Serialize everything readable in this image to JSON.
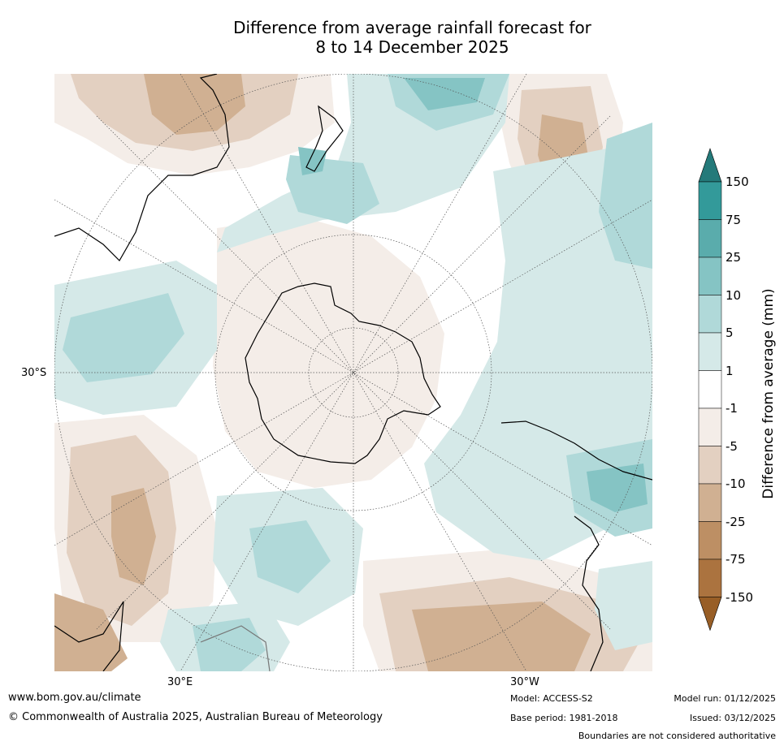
{
  "title": {
    "line1": "Difference from average rainfall forecast for",
    "line2": "8 to 14 December 2025"
  },
  "map": {
    "projection": "south-polar-stereographic",
    "lat_labels": [
      {
        "text": "30°S"
      }
    ],
    "lon_labels": [
      {
        "text": "30°E"
      },
      {
        "text": "30°W"
      }
    ]
  },
  "colorbar": {
    "title": "Difference from average (mm)",
    "ticks": [
      "150",
      "75",
      "25",
      "10",
      "5",
      "1",
      "-1",
      "-5",
      "-10",
      "-25",
      "-75",
      "-150"
    ],
    "colors": {
      "over": "#247a7a",
      "c150_75": "#339a9a",
      "c75_25": "#5aacac",
      "c25_10": "#85c4c4",
      "c10_5": "#b0d9d9",
      "c5_1": "#d5e9e8",
      "c1_m1": "#ffffff",
      "cm1_m5": "#f4ede8",
      "cm5_m10": "#e3d0c1",
      "cm10_m25": "#d0b092",
      "cm25_m75": "#bd8f64",
      "cm75_m150": "#ab733f",
      "under": "#985e26"
    }
  },
  "footer": {
    "website": "www.bom.gov.au/climate",
    "copyright": "© Commonwealth of Australia 2025, Australian Bureau of Meteorology",
    "model": "Model: ACCESS-S2",
    "base_period": "Base period: 1981-2018",
    "model_run": "Model run: 01/12/2025",
    "issued": "Issued: 03/12/2025",
    "disclaimer": "Boundaries are not considered authoritative"
  }
}
